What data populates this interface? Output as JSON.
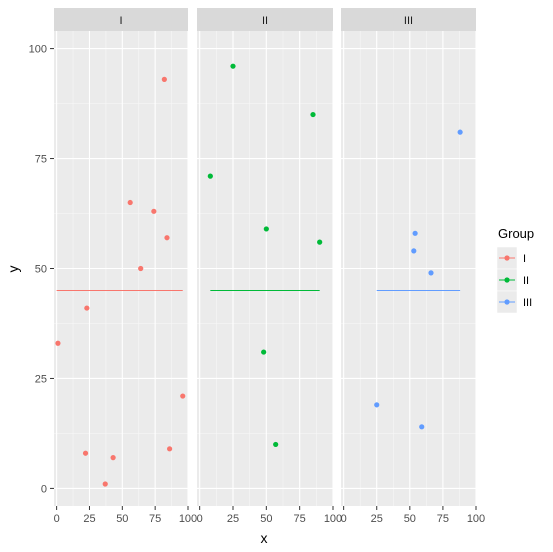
{
  "chart_data": {
    "type": "scatter",
    "title": "",
    "xlabel": "x",
    "ylabel": "y",
    "facets": [
      "I",
      "II",
      "III"
    ],
    "xlim": [
      -2,
      100
    ],
    "ylim": [
      -4,
      104
    ],
    "x_ticks": [
      0,
      25,
      50,
      75,
      100
    ],
    "x_tick_labels": [
      "0",
      "25",
      "50",
      "75",
      "100"
    ],
    "y_ticks": [
      0,
      25,
      50,
      75,
      100
    ],
    "y_tick_labels": [
      "0",
      "25",
      "50",
      "75",
      "100"
    ],
    "grid": true,
    "legend": {
      "title": "Group",
      "position": "right",
      "entries": [
        "I",
        "II",
        "III"
      ]
    },
    "series": [
      {
        "name": "I",
        "color": "#F8766D",
        "points": [
          {
            "x": 82,
            "y": 93
          },
          {
            "x": 56,
            "y": 65
          },
          {
            "x": 74,
            "y": 63
          },
          {
            "x": 84,
            "y": 57
          },
          {
            "x": 64,
            "y": 50
          },
          {
            "x": 23,
            "y": 41
          },
          {
            "x": 1,
            "y": 33
          },
          {
            "x": 96,
            "y": 21
          },
          {
            "x": 86,
            "y": 9
          },
          {
            "x": 22,
            "y": 8
          },
          {
            "x": 43,
            "y": 7
          },
          {
            "x": 37,
            "y": 1
          }
        ],
        "hline": {
          "y": 45,
          "x_start": 0,
          "x_end": 96
        }
      },
      {
        "name": "II",
        "color": "#00BA38",
        "points": [
          {
            "x": 25,
            "y": 96
          },
          {
            "x": 85,
            "y": 85
          },
          {
            "x": 8,
            "y": 71
          },
          {
            "x": 50,
            "y": 59
          },
          {
            "x": 90,
            "y": 56
          },
          {
            "x": 48,
            "y": 31
          },
          {
            "x": 57,
            "y": 10
          }
        ],
        "hline": {
          "y": 45,
          "x_start": 8,
          "x_end": 90
        }
      },
      {
        "name": "III",
        "color": "#619CFF",
        "points": [
          {
            "x": 88,
            "y": 81
          },
          {
            "x": 54,
            "y": 58
          },
          {
            "x": 53,
            "y": 54
          },
          {
            "x": 66,
            "y": 49
          },
          {
            "x": 25,
            "y": 19
          },
          {
            "x": 59,
            "y": 14
          }
        ],
        "hline": {
          "y": 45,
          "x_start": 25,
          "x_end": 88
        }
      }
    ]
  }
}
